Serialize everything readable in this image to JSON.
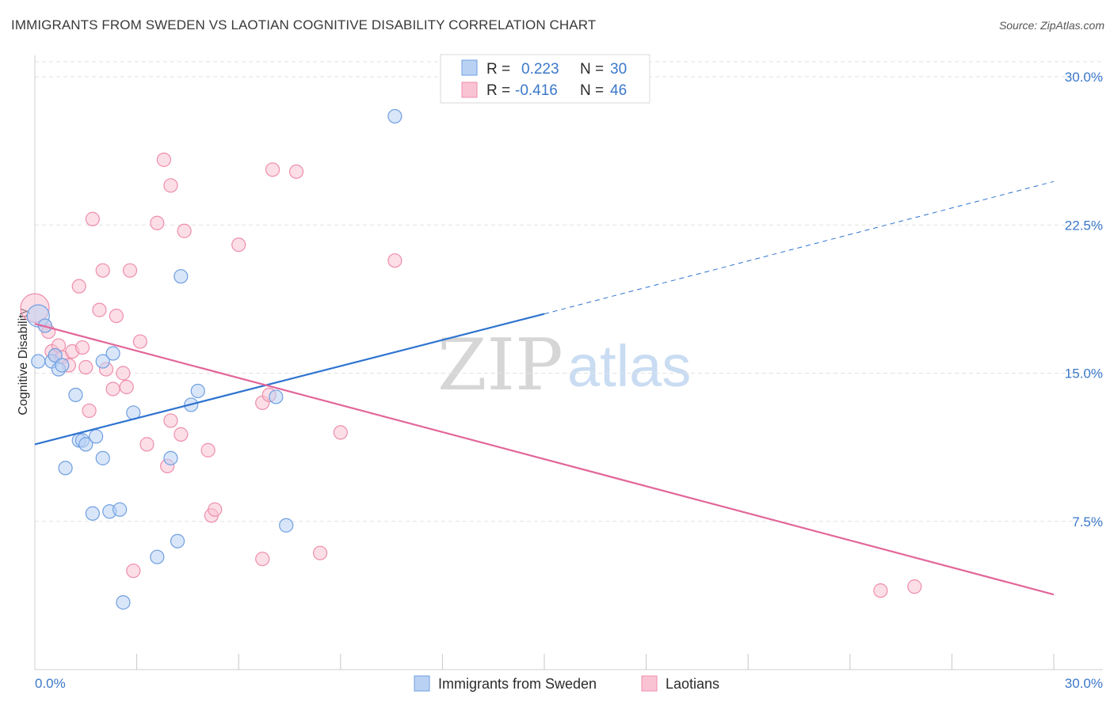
{
  "title": "IMMIGRANTS FROM SWEDEN VS LAOTIAN COGNITIVE DISABILITY CORRELATION CHART",
  "source": "Source: ZipAtlas.com",
  "watermark": {
    "zip": "ZIP",
    "atlas": "atlas"
  },
  "colors": {
    "blue_fill": "#b9d2f4",
    "blue_stroke": "#6f9fe0",
    "blue_line": "#2f74d0",
    "pink_fill": "#f9c3d3",
    "pink_stroke": "#ee8eab",
    "pink_line": "#e2669a",
    "tick_text": "#3b78c9",
    "grid": "#e2e2e2"
  },
  "legend": {
    "rows": [
      {
        "r_label": "R = ",
        "r_value": "0.223",
        "n_label": "N = ",
        "n_value": "30",
        "series": "blue"
      },
      {
        "r_label": "R = ",
        "r_value": "-0.416",
        "n_label": "N = ",
        "n_value": "46",
        "series": "pink"
      }
    ]
  },
  "bottom_legend": [
    "Immigrants from Sweden",
    "Laotians"
  ],
  "chart_data": {
    "type": "scatter",
    "title": "IMMIGRANTS FROM SWEDEN VS LAOTIAN COGNITIVE DISABILITY CORRELATION CHART",
    "xlabel": "",
    "ylabel": "Cognitive Disability",
    "xlim": [
      0,
      30
    ],
    "ylim": [
      0,
      30
    ],
    "x_tick_labels": [
      "0.0%",
      "30.0%"
    ],
    "y_ticks": [
      7.5,
      15.0,
      22.5,
      30.0
    ],
    "y_tick_labels": [
      "7.5%",
      "15.0%",
      "22.5%",
      "30.0%"
    ],
    "grid": true,
    "series": [
      {
        "name": "Immigrants from Sweden",
        "color": "#6f9fe0",
        "R": 0.223,
        "N": 30,
        "points": [
          [
            0.1,
            17.9
          ],
          [
            0.1,
            15.6
          ],
          [
            0.5,
            15.6
          ],
          [
            0.6,
            15.9
          ],
          [
            0.7,
            15.2
          ],
          [
            0.8,
            15.4
          ],
          [
            1.2,
            13.9
          ],
          [
            0.9,
            10.2
          ],
          [
            1.3,
            11.6
          ],
          [
            1.4,
            11.6
          ],
          [
            1.5,
            11.4
          ],
          [
            1.8,
            11.8
          ],
          [
            1.7,
            7.9
          ],
          [
            2.0,
            15.6
          ],
          [
            2.3,
            16.0
          ],
          [
            2.0,
            10.7
          ],
          [
            2.2,
            8.0
          ],
          [
            2.5,
            8.1
          ],
          [
            2.6,
            3.4
          ],
          [
            2.9,
            13.0
          ],
          [
            3.6,
            5.7
          ],
          [
            4.0,
            10.7
          ],
          [
            4.2,
            6.5
          ],
          [
            4.3,
            19.9
          ],
          [
            4.6,
            13.4
          ],
          [
            4.8,
            14.1
          ],
          [
            7.1,
            13.8
          ],
          [
            7.4,
            7.3
          ],
          [
            10.6,
            28.0
          ],
          [
            0.3,
            17.4
          ]
        ],
        "trend": {
          "x": [
            0,
            15
          ],
          "y": [
            11.4,
            18.0
          ],
          "extended_to": [
            30,
            24.7
          ]
        }
      },
      {
        "name": "Laotians",
        "color": "#ee8eab",
        "R": -0.416,
        "N": 46,
        "points": [
          [
            0.0,
            18.3
          ],
          [
            0.3,
            17.4
          ],
          [
            0.4,
            17.1
          ],
          [
            0.5,
            16.1
          ],
          [
            0.6,
            15.9
          ],
          [
            0.7,
            16.4
          ],
          [
            0.8,
            15.8
          ],
          [
            1.0,
            15.4
          ],
          [
            1.1,
            16.1
          ],
          [
            1.3,
            19.4
          ],
          [
            1.4,
            16.3
          ],
          [
            1.6,
            13.1
          ],
          [
            1.7,
            22.8
          ],
          [
            1.9,
            18.2
          ],
          [
            2.0,
            20.2
          ],
          [
            2.1,
            15.2
          ],
          [
            2.3,
            14.2
          ],
          [
            2.4,
            17.9
          ],
          [
            2.6,
            15.0
          ],
          [
            2.7,
            14.3
          ],
          [
            2.8,
            20.2
          ],
          [
            2.9,
            5.0
          ],
          [
            3.1,
            16.6
          ],
          [
            3.3,
            11.4
          ],
          [
            3.6,
            22.6
          ],
          [
            3.8,
            25.8
          ],
          [
            3.9,
            10.3
          ],
          [
            4.0,
            24.5
          ],
          [
            4.0,
            12.6
          ],
          [
            4.3,
            11.9
          ],
          [
            4.4,
            22.2
          ],
          [
            5.1,
            11.1
          ],
          [
            5.2,
            7.8
          ],
          [
            5.3,
            8.1
          ],
          [
            6.0,
            21.5
          ],
          [
            6.7,
            13.5
          ],
          [
            6.7,
            5.6
          ],
          [
            6.9,
            13.9
          ],
          [
            7.0,
            25.3
          ],
          [
            7.7,
            25.2
          ],
          [
            8.4,
            5.9
          ],
          [
            9.0,
            12.0
          ],
          [
            10.6,
            20.7
          ],
          [
            24.9,
            4.0
          ],
          [
            25.9,
            4.2
          ],
          [
            1.5,
            15.3
          ]
        ],
        "trend": {
          "x": [
            0,
            30
          ],
          "y": [
            17.5,
            3.8
          ]
        }
      }
    ]
  }
}
